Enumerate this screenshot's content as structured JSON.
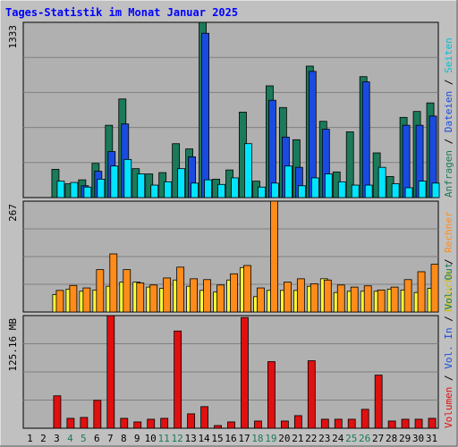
{
  "title": "Tages-Statistik im Monat Januar 2025",
  "colors": {
    "background": "#c0c0c0",
    "panel": "#b0b0b0",
    "gridline": "#808080",
    "title": "#0000ff",
    "anfragen": "#1a7a5a",
    "dateien": "#1a4be0",
    "seiten": "#00e5ff",
    "besuche": "#ffff33",
    "rechner": "#ff8c1a",
    "volumen": "#e01010",
    "vol_in": "#1a4be0",
    "vol_out": "#1a7a5a",
    "weekend_label": "#1a7a5a"
  },
  "legend": {
    "right_panel1": [
      {
        "text": "Anfragen",
        "color": "#1a7a5a"
      },
      {
        "text": "Dateien",
        "color": "#1a4be0"
      },
      {
        "text": "Seiten",
        "color": "#00c0d0"
      }
    ],
    "right_panel2": [
      {
        "text": "Besuche",
        "color": "#d0c000"
      },
      {
        "text": "Rechner",
        "color": "#ff8c1a"
      }
    ],
    "right_panel3": [
      {
        "text": "Volumen",
        "color": "#e01010"
      },
      {
        "text": "Vol. In",
        "color": "#1a4be0"
      },
      {
        "text": "Vol. Out",
        "color": "#1a7a5a"
      }
    ]
  },
  "chart_data": [
    {
      "type": "bar",
      "panel": "hits",
      "ymax_label": "1333",
      "ylim": [
        0,
        1333
      ],
      "categories": [
        "1",
        "2",
        "3",
        "4",
        "5",
        "6",
        "7",
        "8",
        "9",
        "10",
        "11",
        "12",
        "13",
        "14",
        "15",
        "16",
        "17",
        "18",
        "19",
        "20",
        "21",
        "22",
        "23",
        "24",
        "25",
        "26",
        "27",
        "28",
        "29",
        "30",
        "31"
      ],
      "weekend_days": [
        "4",
        "5",
        "11",
        "12",
        "18",
        "19",
        "25",
        "26"
      ],
      "series": [
        {
          "name": "Anfragen",
          "values": [
            0,
            0,
            215,
            105,
            135,
            260,
            550,
            750,
            220,
            180,
            190,
            410,
            370,
            1333,
            140,
            210,
            650,
            125,
            850,
            685,
            440,
            1000,
            580,
            195,
            500,
            920,
            340,
            160,
            610,
            655,
            720
          ]
        },
        {
          "name": "Dateien",
          "values": [
            0,
            0,
            0,
            0,
            90,
            200,
            350,
            560,
            0,
            0,
            0,
            0,
            310,
            1250,
            0,
            0,
            0,
            0,
            740,
            460,
            230,
            960,
            520,
            0,
            0,
            880,
            0,
            0,
            550,
            550,
            620
          ]
        },
        {
          "name": "Seiten",
          "values": [
            0,
            0,
            125,
            115,
            80,
            140,
            240,
            290,
            180,
            95,
            120,
            220,
            110,
            135,
            100,
            150,
            410,
            80,
            110,
            240,
            90,
            150,
            180,
            120,
            95,
            95,
            230,
            105,
            75,
            125,
            110
          ]
        }
      ]
    },
    {
      "type": "bar",
      "panel": "visits",
      "ymax_label": "267",
      "ylim": [
        0,
        267
      ],
      "categories": [
        "1",
        "2",
        "3",
        "4",
        "5",
        "6",
        "7",
        "8",
        "9",
        "10",
        "11",
        "12",
        "13",
        "14",
        "15",
        "16",
        "17",
        "18",
        "19",
        "20",
        "21",
        "22",
        "23",
        "24",
        "25",
        "26",
        "27",
        "28",
        "29",
        "30",
        "31"
      ],
      "series": [
        {
          "name": "Besuche",
          "values": [
            0,
            0,
            42,
            55,
            50,
            53,
            62,
            72,
            72,
            60,
            57,
            77,
            62,
            52,
            48,
            77,
            107,
            37,
            52,
            52,
            52,
            62,
            80,
            47,
            50,
            50,
            50,
            55,
            53,
            47,
            57
          ]
        },
        {
          "name": "Rechner",
          "values": [
            0,
            0,
            52,
            64,
            58,
            102,
            140,
            102,
            70,
            65,
            82,
            108,
            80,
            78,
            65,
            92,
            112,
            58,
            267,
            72,
            80,
            68,
            77,
            65,
            60,
            63,
            53,
            60,
            78,
            97,
            115
          ]
        }
      ]
    },
    {
      "type": "bar",
      "panel": "volume",
      "ymax_label": "125.16 MB",
      "ylim": [
        0,
        125.16
      ],
      "categories": [
        "1",
        "2",
        "3",
        "4",
        "5",
        "6",
        "7",
        "8",
        "9",
        "10",
        "11",
        "12",
        "13",
        "14",
        "15",
        "16",
        "17",
        "18",
        "19",
        "20",
        "21",
        "22",
        "23",
        "24",
        "25",
        "26",
        "27",
        "28",
        "29",
        "30",
        "31"
      ],
      "series": [
        {
          "name": "Volumen",
          "values": [
            0,
            0,
            36,
            11,
            12,
            31,
            125.16,
            11,
            7,
            10,
            11,
            108,
            16,
            24,
            3,
            7,
            123,
            8,
            74,
            8,
            14,
            75,
            10,
            10,
            10,
            21,
            59,
            8,
            10,
            10,
            11
          ]
        }
      ]
    }
  ]
}
